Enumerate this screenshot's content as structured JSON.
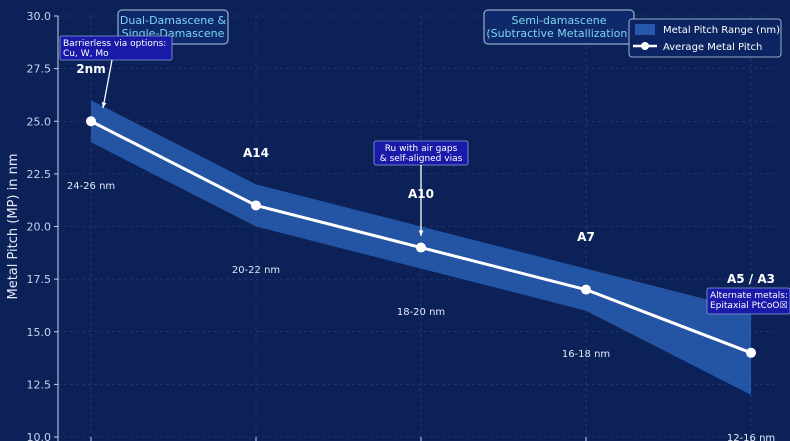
{
  "chart_data": {
    "type": "line",
    "ylabel": "Metal Pitch (MP) in nm",
    "ylim": [
      10.0,
      30.0
    ],
    "yticks": [
      "10.0",
      "12.5",
      "15.0",
      "17.5",
      "20.0",
      "22.5",
      "25.0",
      "27.5",
      "30.0"
    ],
    "grid": true,
    "legend_position": "top-right",
    "categories": [
      "2nm",
      "A14",
      "A10",
      "A7",
      "A5 / A3"
    ],
    "series": [
      {
        "name": "Average Metal Pitch",
        "values": [
          25,
          21,
          19,
          17,
          14
        ]
      },
      {
        "name": "Metal Pitch Range (nm)",
        "low": [
          24,
          20,
          18,
          16,
          12
        ],
        "high": [
          26,
          22,
          20,
          18,
          16
        ]
      }
    ],
    "range_labels": [
      "24-26 nm",
      "20-22 nm",
      "18-20 nm",
      "16-18 nm",
      "12-16 nm"
    ],
    "era_labels": [
      {
        "lines": [
          "Dual-Damascene &",
          "Single-Damascene"
        ]
      },
      {
        "lines": [
          "Semi-damascene",
          "(Subtractive Metallization)"
        ]
      }
    ],
    "annotations": [
      {
        "lines": [
          "Barrierless via options:",
          "Cu, W, Mo"
        ]
      },
      {
        "lines": [
          "Ru with air gaps",
          "& self-aligned vias"
        ]
      },
      {
        "lines": [
          "Alternate metals:",
          "Epitaxial PtCoO☒"
        ]
      }
    ],
    "colors": {
      "background": "#0b2158",
      "band": "#2b63b8",
      "line": "#ffffff",
      "era_text": "#7fd6f2",
      "annotation_box": "#1a1aa8"
    }
  }
}
